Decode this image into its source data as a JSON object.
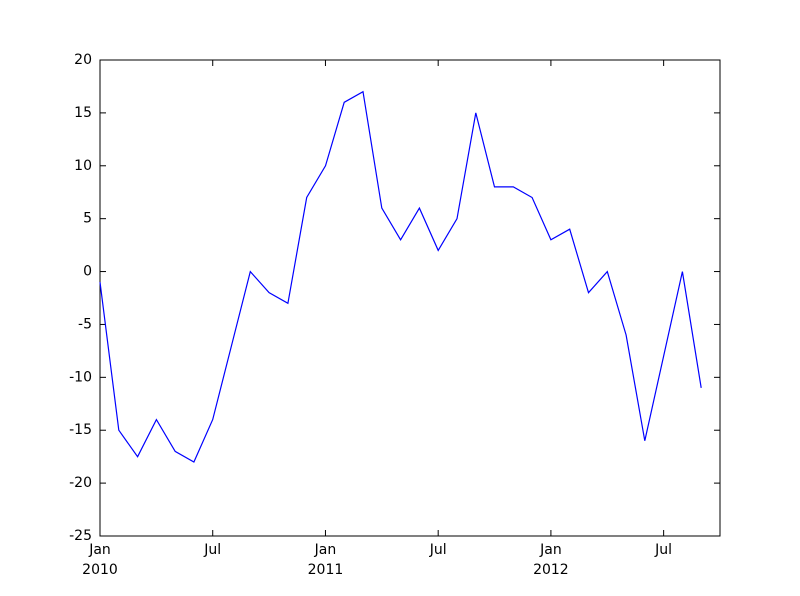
{
  "chart_data": {
    "type": "line",
    "x": [
      "2010-01",
      "2010-02",
      "2010-03",
      "2010-04",
      "2010-05",
      "2010-06",
      "2010-07",
      "2010-08",
      "2010-09",
      "2010-10",
      "2010-11",
      "2010-12",
      "2011-01",
      "2011-02",
      "2011-03",
      "2011-04",
      "2011-05",
      "2011-06",
      "2011-07",
      "2011-08",
      "2011-09",
      "2011-10",
      "2011-11",
      "2011-12",
      "2012-01",
      "2012-02",
      "2012-03",
      "2012-04",
      "2012-05",
      "2012-06",
      "2012-07",
      "2012-08",
      "2012-09"
    ],
    "series": [
      {
        "color": "#0000ff",
        "values": [
          -1,
          -15,
          -17.5,
          -14,
          -17,
          -18,
          -14,
          -7,
          0,
          -2,
          -3,
          7,
          10,
          16,
          17,
          6,
          3,
          6,
          2,
          5,
          15,
          8,
          8,
          7,
          3,
          4,
          -2,
          0,
          -6,
          -16,
          -8,
          0,
          -11
        ]
      }
    ],
    "xlim": [
      "2010-01",
      "2012-10"
    ],
    "xticks": [
      {
        "value": "2010-01",
        "label": "Jan\n2010"
      },
      {
        "value": "2010-07",
        "label": "Jul"
      },
      {
        "value": "2011-01",
        "label": "Jan\n2011"
      },
      {
        "value": "2011-07",
        "label": "Jul"
      },
      {
        "value": "2012-01",
        "label": "Jan\n2012"
      },
      {
        "value": "2012-07",
        "label": "Jul"
      }
    ],
    "ylim": [
      -25,
      20
    ],
    "yticks": [
      -25,
      -20,
      -15,
      -10,
      -5,
      0,
      5,
      10,
      15,
      20
    ]
  }
}
